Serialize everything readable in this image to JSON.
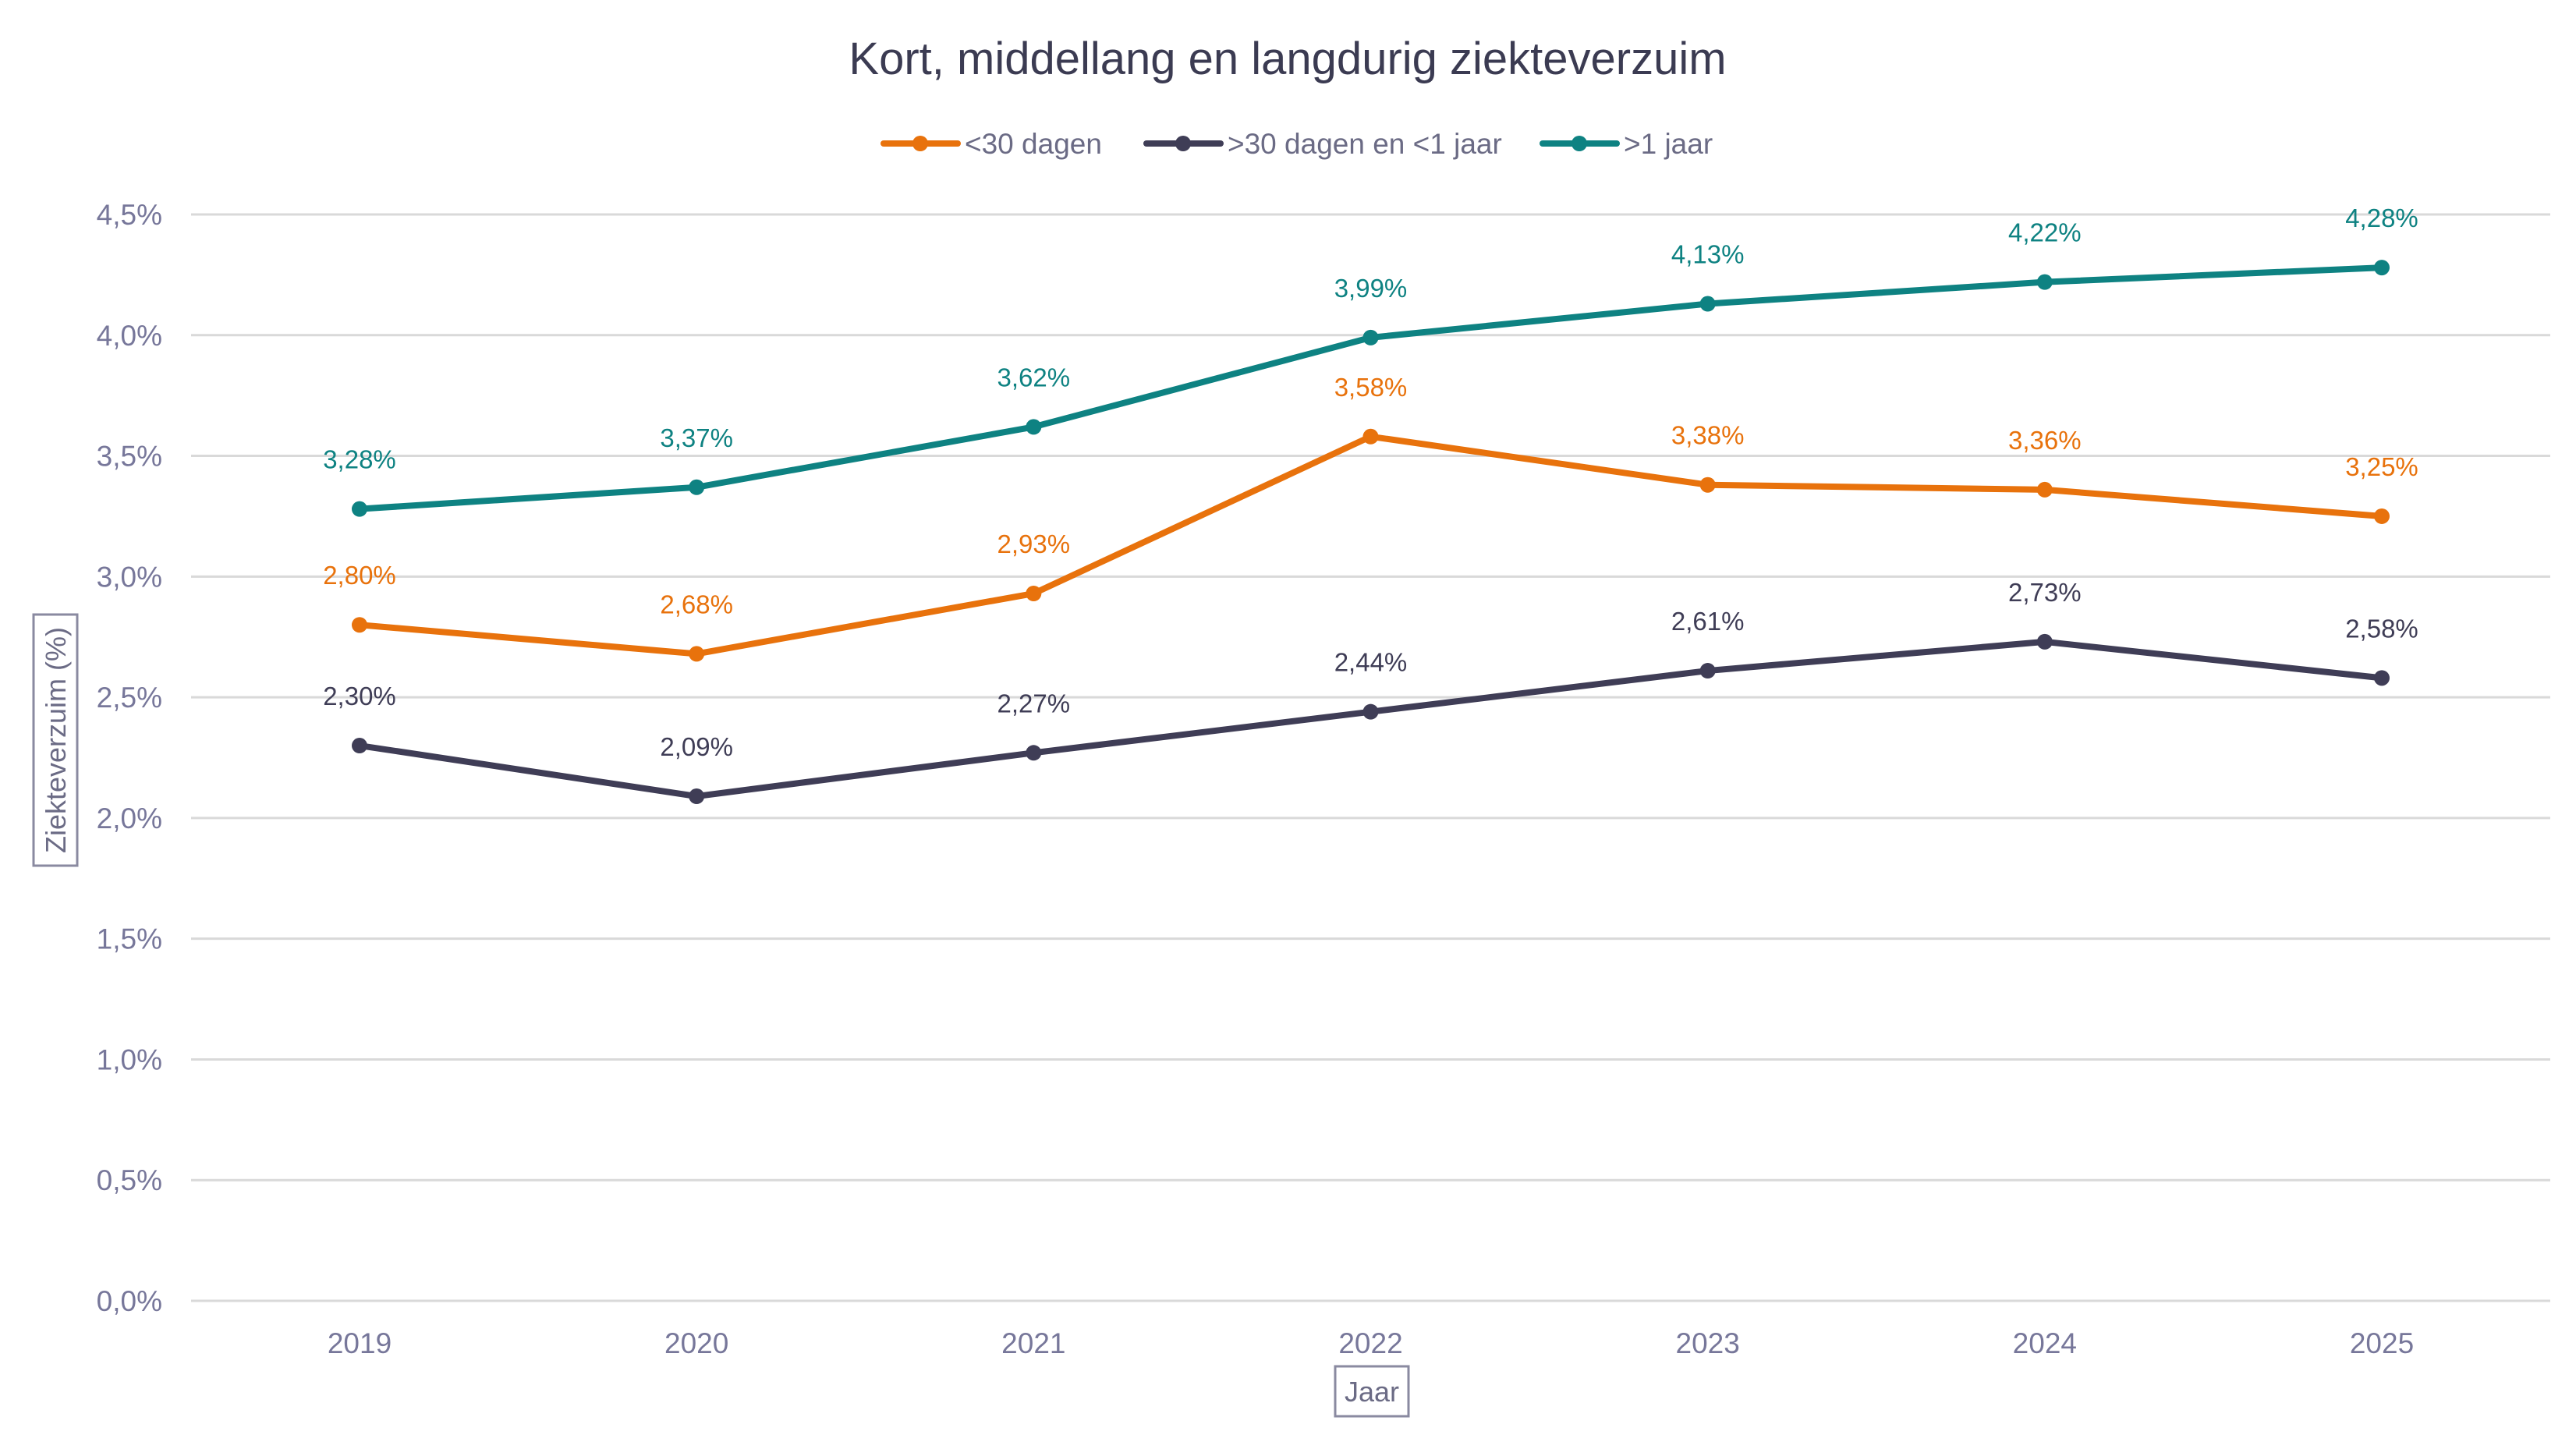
{
  "chart_data": {
    "type": "line",
    "title": "Kort, middellang en langdurig ziekteverzuim",
    "xlabel": "Jaar",
    "ylabel": "Ziekteverzuim (%)",
    "categories": [
      "2019",
      "2020",
      "2021",
      "2022",
      "2023",
      "2024",
      "2025"
    ],
    "ylim": [
      0,
      4.5
    ],
    "yticks": [
      0,
      0.5,
      1.0,
      1.5,
      2.0,
      2.5,
      3.0,
      3.5,
      4.0,
      4.5
    ],
    "ytick_labels": [
      "0,0%",
      "0,5%",
      "1,0%",
      "1,5%",
      "2,0%",
      "2,5%",
      "3,0%",
      "3,5%",
      "4,0%",
      "4,5%"
    ],
    "grid": true,
    "legend_position": "top-center",
    "series": [
      {
        "name": "<30 dagen",
        "color": "#e8720c",
        "values": [
          2.8,
          2.68,
          2.93,
          3.58,
          3.38,
          3.36,
          3.25
        ],
        "labels": [
          "2,80%",
          "2,68%",
          "2,93%",
          "3,58%",
          "3,38%",
          "3,36%",
          "3,25%"
        ]
      },
      {
        "name": ">30 dagen en <1 jaar",
        "color": "#3f3d56",
        "values": [
          2.3,
          2.09,
          2.27,
          2.44,
          2.61,
          2.73,
          2.58
        ],
        "labels": [
          "2,30%",
          "2,09%",
          "2,27%",
          "2,44%",
          "2,61%",
          "2,73%",
          "2,58%"
        ]
      },
      {
        "name": ">1 jaar",
        "color": "#0e8282",
        "values": [
          3.28,
          3.37,
          3.62,
          3.99,
          4.13,
          4.22,
          4.28
        ],
        "labels": [
          "3,28%",
          "3,37%",
          "3,62%",
          "3,99%",
          "4,13%",
          "4,22%",
          "4,28%"
        ]
      }
    ]
  }
}
